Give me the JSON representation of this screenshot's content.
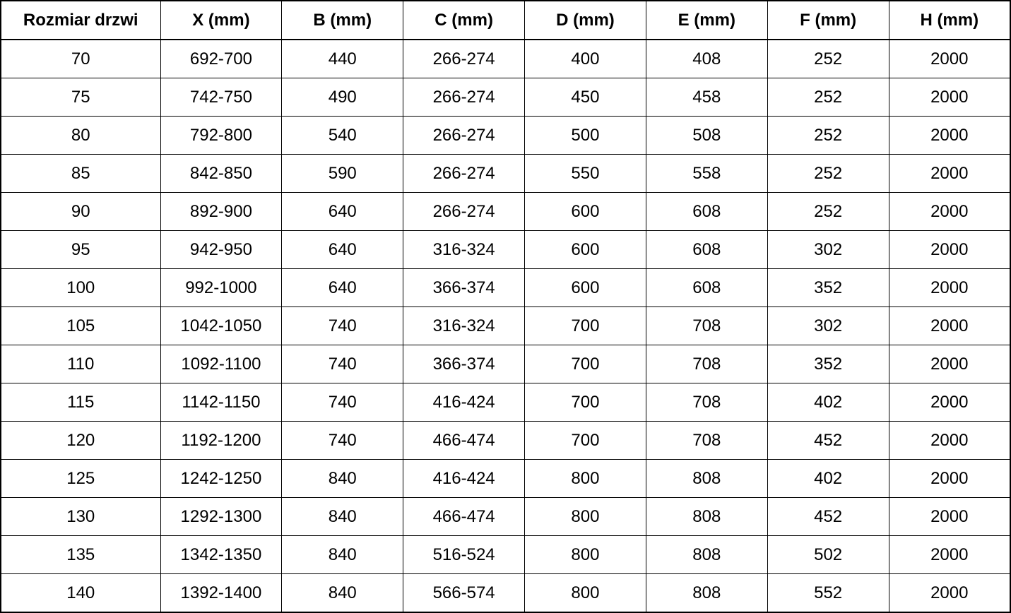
{
  "table": {
    "headers": [
      "Rozmiar drzwi",
      "X (mm)",
      "B (mm)",
      "C (mm)",
      "D (mm)",
      "E (mm)",
      "F (mm)",
      "H (mm)"
    ],
    "rows": [
      [
        "70",
        "692-700",
        "440",
        "266-274",
        "400",
        "408",
        "252",
        "2000"
      ],
      [
        "75",
        "742-750",
        "490",
        "266-274",
        "450",
        "458",
        "252",
        "2000"
      ],
      [
        "80",
        "792-800",
        "540",
        "266-274",
        "500",
        "508",
        "252",
        "2000"
      ],
      [
        "85",
        "842-850",
        "590",
        "266-274",
        "550",
        "558",
        "252",
        "2000"
      ],
      [
        "90",
        "892-900",
        "640",
        "266-274",
        "600",
        "608",
        "252",
        "2000"
      ],
      [
        "95",
        "942-950",
        "640",
        "316-324",
        "600",
        "608",
        "302",
        "2000"
      ],
      [
        "100",
        "992-1000",
        "640",
        "366-374",
        "600",
        "608",
        "352",
        "2000"
      ],
      [
        "105",
        "1042-1050",
        "740",
        "316-324",
        "700",
        "708",
        "302",
        "2000"
      ],
      [
        "110",
        "1092-1100",
        "740",
        "366-374",
        "700",
        "708",
        "352",
        "2000"
      ],
      [
        "115",
        "1142-1150",
        "740",
        "416-424",
        "700",
        "708",
        "402",
        "2000"
      ],
      [
        "120",
        "1192-1200",
        "740",
        "466-474",
        "700",
        "708",
        "452",
        "2000"
      ],
      [
        "125",
        "1242-1250",
        "840",
        "416-424",
        "800",
        "808",
        "402",
        "2000"
      ],
      [
        "130",
        "1292-1300",
        "840",
        "466-474",
        "800",
        "808",
        "452",
        "2000"
      ],
      [
        "135",
        "1342-1350",
        "840",
        "516-524",
        "800",
        "808",
        "502",
        "2000"
      ],
      [
        "140",
        "1392-1400",
        "840",
        "566-574",
        "800",
        "808",
        "552",
        "2000"
      ]
    ]
  },
  "colors": {
    "border": "#000000",
    "text": "#000000",
    "background": "#ffffff"
  }
}
